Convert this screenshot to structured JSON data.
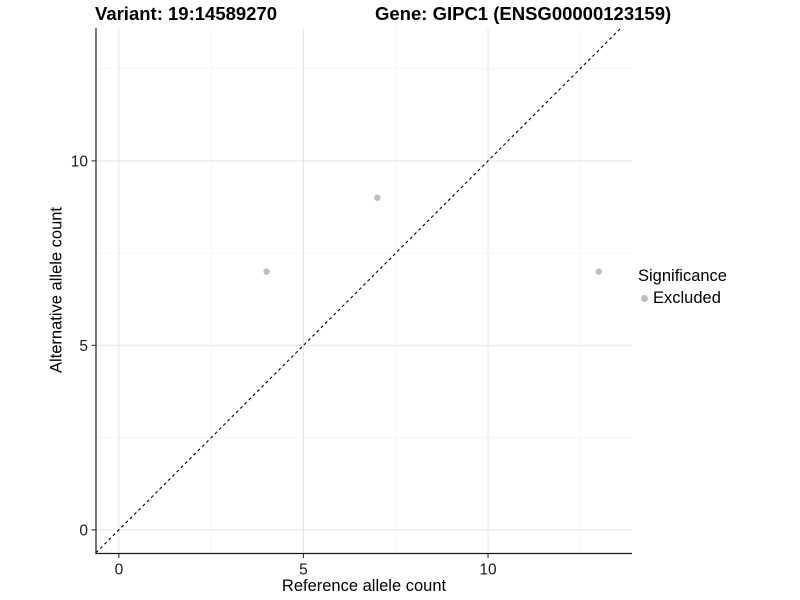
{
  "chart_data": {
    "type": "scatter",
    "title_left": "Variant: 19:14589270",
    "title_right": "Gene: GIPC1 (ENSG00000123159)",
    "xlabel": "Reference allele count",
    "ylabel": "Alternative allele count",
    "points": [
      {
        "x": 4,
        "y": 7
      },
      {
        "x": 7,
        "y": 9
      },
      {
        "x": 13,
        "y": 7
      }
    ],
    "x_ticks": [
      0,
      5,
      10
    ],
    "y_ticks": [
      0,
      5,
      10
    ],
    "x_minor": [
      2.5,
      7.5,
      12.5
    ],
    "y_minor": [
      2.5,
      7.5,
      12.5
    ],
    "xlim": [
      -0.62,
      13.9
    ],
    "ylim": [
      -0.64,
      13.6
    ],
    "identity_line": {
      "equation": "y = x",
      "style": "dashed",
      "color": "#000000"
    },
    "point_color": "#bdbdbd",
    "grid_major_color": "#e4e4e4",
    "grid_minor_color": "#f1f1f1",
    "axis_line_color": "#1a1a1a",
    "legend_position": "right",
    "legend": {
      "title": "Significance",
      "items": [
        {
          "label": "Excluded",
          "color": "#bdbdbd"
        }
      ]
    }
  }
}
